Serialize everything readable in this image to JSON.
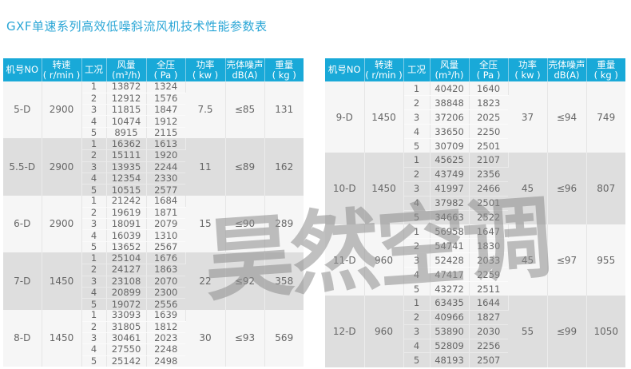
{
  "title": "GXF单速系列高效低噪斜流风机技术性能参数表",
  "headers": [
    "机号NO",
    "转速\n( r/min )",
    "工况",
    "风量\n(m³/h)",
    "全压\n( Pa )",
    "功率\n( kw )",
    "壳体噪声\ndB(A)",
    "重量\n( kg )"
  ],
  "watermark": "昊然空调",
  "colors": {
    "header": "#19a9d8",
    "title": "#2aa6d6",
    "row_light": "#f6f6f6",
    "row_dark": "#dedede"
  },
  "left_table": [
    {
      "model": "5-D",
      "speed": "2900",
      "power": "7.5",
      "noise": "≤85",
      "weight": "131",
      "rows": [
        [
          "1",
          "13872",
          "1324"
        ],
        [
          "2",
          "12912",
          "1576"
        ],
        [
          "3",
          "11815",
          "1847"
        ],
        [
          "4",
          "10474",
          "1912"
        ],
        [
          "5",
          "8915",
          "2115"
        ]
      ]
    },
    {
      "model": "5.5-D",
      "speed": "2900",
      "power": "11",
      "noise": "≤89",
      "weight": "162",
      "rows": [
        [
          "1",
          "16362",
          "1613"
        ],
        [
          "2",
          "15111",
          "1920"
        ],
        [
          "3",
          "13935",
          "2244"
        ],
        [
          "4",
          "12354",
          "2330"
        ],
        [
          "5",
          "10515",
          "2577"
        ]
      ]
    },
    {
      "model": "6-D",
      "speed": "2900",
      "power": "15",
      "noise": "≤90",
      "weight": "289",
      "rows": [
        [
          "1",
          "21242",
          "1684"
        ],
        [
          "2",
          "19619",
          "1871"
        ],
        [
          "3",
          "18091",
          "2079"
        ],
        [
          "4",
          "16039",
          "1310"
        ],
        [
          "5",
          "13652",
          "2567"
        ]
      ]
    },
    {
      "model": "7-D",
      "speed": "1450",
      "power": "22",
      "noise": "≤92",
      "weight": "358",
      "rows": [
        [
          "1",
          "25104",
          "1676"
        ],
        [
          "2",
          "24127",
          "1863"
        ],
        [
          "3",
          "23108",
          "2070"
        ],
        [
          "4",
          "20899",
          "2300"
        ],
        [
          "5",
          "19072",
          "2556"
        ]
      ]
    },
    {
      "model": "8-D",
      "speed": "1450",
      "power": "30",
      "noise": "≤93",
      "weight": "569",
      "rows": [
        [
          "1",
          "33093",
          "1639"
        ],
        [
          "2",
          "31805",
          "1812"
        ],
        [
          "3",
          "30461",
          "2023"
        ],
        [
          "4",
          "27550",
          "2248"
        ],
        [
          "5",
          "25142",
          "2498"
        ]
      ]
    }
  ],
  "right_table": [
    {
      "model": "9-D",
      "speed": "1450",
      "power": "37",
      "noise": "≤94",
      "weight": "749",
      "rows": [
        [
          "1",
          "40420",
          "1640"
        ],
        [
          "2",
          "38848",
          "1823"
        ],
        [
          "3",
          "37206",
          "2025"
        ],
        [
          "4",
          "33650",
          "2250"
        ],
        [
          "5",
          "30709",
          "2501"
        ]
      ]
    },
    {
      "model": "10-D",
      "speed": "1450",
      "power": "45",
      "noise": "≤96",
      "weight": "807",
      "rows": [
        [
          "1",
          "45625",
          "2107"
        ],
        [
          "2",
          "43749",
          "2356"
        ],
        [
          "3",
          "41997",
          "2466"
        ],
        [
          "4",
          "37982",
          "2501"
        ],
        [
          "5",
          "34663",
          "2522"
        ]
      ]
    },
    {
      "model": "11-D",
      "speed": "960",
      "power": "45",
      "noise": "≤97",
      "weight": "955",
      "rows": [
        [
          "1",
          "56958",
          "1647"
        ],
        [
          "2",
          "54741",
          "1830"
        ],
        [
          "3",
          "52428",
          "2033"
        ],
        [
          "4",
          "47417",
          "2259"
        ],
        [
          "5",
          "43272",
          "2511"
        ]
      ]
    },
    {
      "model": "12-D",
      "speed": "960",
      "power": "55",
      "noise": "≤99",
      "weight": "1050",
      "rows": [
        [
          "1",
          "63435",
          "1644"
        ],
        [
          "2",
          "40966",
          "1827"
        ],
        [
          "3",
          "53890",
          "2030"
        ],
        [
          "4",
          "52809",
          "2256"
        ],
        [
          "5",
          "48193",
          "2507"
        ]
      ]
    }
  ]
}
